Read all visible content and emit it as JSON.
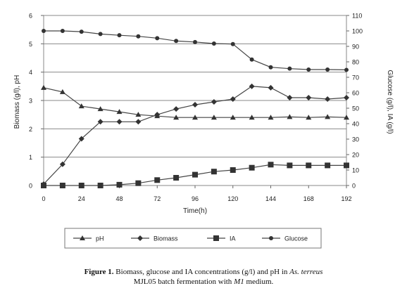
{
  "chart_data": {
    "type": "line",
    "xlabel": "Time(h)",
    "ylabel_left": "Biomass (g/l), pH",
    "ylabel_right": "Glucose (g/l), IA (g/l)",
    "x_ticks": [
      0,
      24,
      48,
      72,
      96,
      120,
      144,
      168,
      192
    ],
    "ylim_left": [
      0,
      6
    ],
    "ylim_right": [
      0,
      110
    ],
    "y_ticks_left": [
      0,
      1,
      2,
      3,
      4,
      5,
      6
    ],
    "y_ticks_right": [
      0,
      10,
      20,
      30,
      40,
      50,
      60,
      70,
      80,
      90,
      100,
      110
    ],
    "grid": "horizontal",
    "legend_position": "bottom",
    "series": [
      {
        "name": "pH",
        "axis": "left",
        "marker": "triangle",
        "x": [
          0,
          12,
          24,
          36,
          48,
          60,
          72,
          84,
          96,
          108,
          120,
          132,
          144,
          156,
          168,
          180,
          192
        ],
        "values": [
          3.45,
          3.3,
          2.8,
          2.7,
          2.6,
          2.5,
          2.45,
          2.4,
          2.4,
          2.4,
          2.4,
          2.4,
          2.4,
          2.42,
          2.4,
          2.42,
          2.4
        ]
      },
      {
        "name": "Biomass",
        "axis": "left",
        "marker": "diamond",
        "x": [
          0,
          12,
          24,
          36,
          48,
          60,
          72,
          84,
          96,
          108,
          120,
          132,
          144,
          156,
          168,
          180,
          192
        ],
        "values": [
          0.05,
          0.75,
          1.65,
          2.25,
          2.25,
          2.25,
          2.5,
          2.7,
          2.85,
          2.95,
          3.05,
          3.5,
          3.45,
          3.1,
          3.1,
          3.05,
          3.1
        ]
      },
      {
        "name": "IA",
        "axis": "right",
        "marker": "square",
        "x": [
          0,
          12,
          24,
          36,
          48,
          60,
          72,
          84,
          96,
          108,
          120,
          132,
          144,
          156,
          168,
          180,
          192
        ],
        "values": [
          0,
          0,
          0,
          0,
          0.5,
          1.5,
          3.5,
          5,
          7,
          9,
          10,
          11.5,
          13.5,
          13,
          13,
          13,
          13
        ]
      },
      {
        "name": "Glucose",
        "axis": "right",
        "marker": "circle",
        "x": [
          0,
          12,
          24,
          36,
          48,
          60,
          72,
          84,
          96,
          108,
          120,
          132,
          144,
          156,
          168,
          180,
          192
        ],
        "values": [
          100,
          100,
          99.5,
          98,
          97.2,
          96.5,
          95.3,
          93.5,
          92.8,
          91.8,
          91.5,
          81.5,
          76.5,
          75.6,
          75,
          75,
          74.8
        ]
      }
    ]
  },
  "caption": {
    "label": "Figure 1.",
    "text_1": " Biomass, glucose and IA concentrations (g/l) and pH in ",
    "organism": "As. terreus",
    "text_2": "MJL05 batch fermentation with ",
    "medium": "M1",
    "text_3": " medium."
  }
}
